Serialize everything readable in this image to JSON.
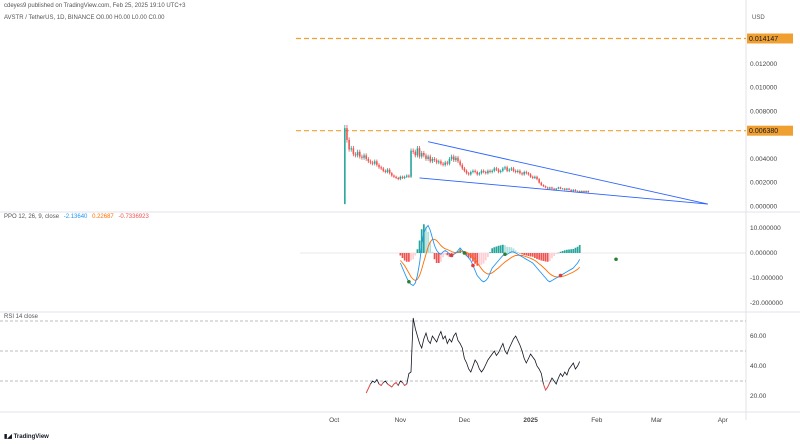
{
  "header": {
    "publish_line": "cdeyes9 published on TradingView.com, Feb 25, 2025 19:10 UTC+3",
    "symbol_line": "AVSTR / TetherUS, 1D, BINANCE O0.00 H0.00 L0.00 C0.00",
    "currency": "USD"
  },
  "footer": {
    "brand": "TradingView"
  },
  "colors": {
    "up": "#26a69a",
    "down": "#ef5350",
    "level": "#f0a030",
    "trend": "#2962ff",
    "ppo_line": "#2196f3",
    "ppo_signal": "#ff6d00",
    "rsi": "#131722",
    "dot_green": "#2e7d32",
    "dot_red": "#e53935"
  },
  "chart_data": [
    {
      "type": "candlestick",
      "pane": "price",
      "y_ticks": [
        "0.012000",
        "0.010000",
        "0.008000",
        "0.004000",
        "0.002000",
        "0.000000"
      ],
      "y_tick_values": [
        0.012,
        0.01,
        0.008,
        0.004,
        0.002,
        0.0
      ],
      "ylim": [
        -0.0003,
        0.0152
      ],
      "price_labels": [
        {
          "value": 0.014147,
          "label": "0.014147"
        },
        {
          "value": 0.00638,
          "label": "0.006380"
        }
      ],
      "trendlines": [
        {
          "from": [
            "2024-11-14",
            0.00545
          ],
          "to": [
            "2025-03-25",
            0.0002
          ]
        },
        {
          "from": [
            "2024-11-10",
            0.0024
          ],
          "to": [
            "2025-03-25",
            0.0002
          ]
        }
      ],
      "ohlc": {
        "start": "2024-10-06",
        "close": [
          0.0066,
          0.0056,
          0.0048,
          0.0049,
          0.0044,
          0.0043,
          0.0046,
          0.0042,
          0.0041,
          0.0043,
          0.004,
          0.0038,
          0.0037,
          0.0036,
          0.0038,
          0.0035,
          0.0033,
          0.0032,
          0.003,
          0.0029,
          0.0031,
          0.0028,
          0.0026,
          0.0025,
          0.0024,
          0.0023,
          0.0025,
          0.0024,
          0.0025,
          0.0026,
          0.0025,
          0.0047,
          0.0046,
          0.0043,
          0.0049,
          0.0042,
          0.0045,
          0.0043,
          0.004,
          0.0042,
          0.0038,
          0.004,
          0.0039,
          0.0037,
          0.0038,
          0.0036,
          0.0035,
          0.0037,
          0.0036,
          0.004,
          0.0042,
          0.0039,
          0.0041,
          0.0038,
          0.0035,
          0.0032,
          0.003,
          0.0028,
          0.0027,
          0.0029,
          0.003,
          0.0029,
          0.0027,
          0.0028,
          0.003,
          0.0029,
          0.0028,
          0.003,
          0.0029,
          0.003,
          0.0032,
          0.0031,
          0.0029,
          0.003,
          0.0032,
          0.0033,
          0.003,
          0.0031,
          0.0032,
          0.003,
          0.0029,
          0.003,
          0.0028,
          0.0027,
          0.0029,
          0.0028,
          0.0027,
          0.0025,
          0.0024,
          0.0025,
          0.0023,
          0.002,
          0.0018,
          0.0017,
          0.0016,
          0.0015,
          0.0016,
          0.0015,
          0.0014,
          0.0015,
          0.0016,
          0.0015,
          0.0015,
          0.0014,
          0.0015,
          0.0014,
          0.0013,
          0.0014,
          0.0013,
          0.0013,
          0.0012,
          0.0013,
          0.0012,
          0.0013,
          0.0012
        ]
      }
    },
    {
      "type": "ppo",
      "pane": "oscillator",
      "title": "PPO 12, 26, 9, close",
      "values": [
        "-2.13640",
        "0.22687",
        "-0.7336923"
      ],
      "y_ticks": [
        "10.000000",
        "0.000000",
        "-10.000000",
        "-20.000000"
      ],
      "y_tick_values": [
        10,
        0,
        -10,
        -20
      ],
      "ylim": [
        -22,
        14
      ],
      "start": "2024-11-01",
      "ppo": [
        -4.0,
        -6.0,
        -8.0,
        -10.0,
        -11.5,
        -12.5,
        -13.0,
        -12.0,
        -9.0,
        -4.0,
        3.0,
        8.0,
        10.0,
        11.0,
        9.0,
        6.0,
        3.0,
        1.0,
        0.0,
        -0.5,
        0.5,
        1.0,
        0.5,
        -0.5,
        -1.0,
        -0.5,
        0.0,
        1.0,
        2.0,
        1.0,
        0.0,
        -1.0,
        -2.0,
        -3.0,
        -5.0,
        -7.0,
        -9.0,
        -10.0,
        -11.0,
        -11.5,
        -11.0,
        -10.0,
        -8.0,
        -6.0,
        -5.0,
        -4.0,
        -3.0,
        -2.0,
        -1.0,
        -0.5,
        -0.5,
        0.0,
        0.5,
        0.5,
        0.0,
        -0.5,
        -1.0,
        -1.5,
        -2.0,
        -2.5,
        -3.0,
        -3.5,
        -4.0,
        -5.0,
        -6.0,
        -7.0,
        -8.0,
        -9.0,
        -10.0,
        -11.0,
        -11.5,
        -11.0,
        -10.5,
        -10.0,
        -9.5,
        -9.0,
        -8.5,
        -8.0,
        -7.5,
        -7.0,
        -6.5,
        -6.0,
        -5.0,
        -4.0,
        -2.5
      ],
      "signal": [
        -3.0,
        -4.0,
        -5.0,
        -6.5,
        -8.0,
        -9.5,
        -10.5,
        -11.0,
        -10.5,
        -9.0,
        -6.5,
        -3.5,
        -0.5,
        2.5,
        4.5,
        5.5,
        5.5,
        5.0,
        4.0,
        3.0,
        2.2,
        1.7,
        1.4,
        1.0,
        0.6,
        0.3,
        0.2,
        0.3,
        0.6,
        0.7,
        0.6,
        0.3,
        -0.2,
        -0.8,
        -1.6,
        -2.7,
        -3.9,
        -5.1,
        -6.3,
        -7.3,
        -8.0,
        -8.4,
        -8.3,
        -7.9,
        -7.3,
        -6.6,
        -5.9,
        -5.1,
        -4.3,
        -3.6,
        -3.0,
        -2.4,
        -1.8,
        -1.3,
        -1.0,
        -0.9,
        -0.9,
        -1.0,
        -1.2,
        -1.5,
        -1.8,
        -2.1,
        -2.5,
        -3.0,
        -3.6,
        -4.3,
        -5.0,
        -5.8,
        -6.6,
        -7.5,
        -8.3,
        -8.9,
        -9.3,
        -9.5,
        -9.6,
        -9.5,
        -9.3,
        -9.1,
        -8.8,
        -8.4,
        -8.0,
        -7.6,
        -7.1,
        -6.5,
        -5.7
      ],
      "histogram": [
        -1.0,
        -2.0,
        -3.0,
        -3.5,
        -3.5,
        -3.0,
        -2.5,
        -1.0,
        1.5,
        5.0,
        9.5,
        11.5,
        10.5,
        8.5,
        4.5,
        0.5,
        -2.5,
        -4.0,
        -4.0,
        -3.5,
        -1.7,
        -0.7,
        -0.9,
        -1.5,
        -1.6,
        -0.8,
        -0.2,
        0.7,
        1.4,
        0.3,
        -0.6,
        -1.3,
        -1.8,
        -2.2,
        -3.4,
        -4.3,
        -5.1,
        -4.9,
        -4.7,
        -4.2,
        -3.0,
        -1.6,
        0.3,
        1.9,
        2.3,
        2.6,
        2.9,
        3.1,
        3.3,
        3.1,
        2.5,
        2.4,
        2.3,
        1.8,
        1.0,
        0.4,
        -0.1,
        -0.5,
        -0.8,
        -1.0,
        -1.2,
        -1.4,
        -1.5,
        -2.0,
        -2.4,
        -2.7,
        -3.0,
        -3.2,
        -3.4,
        -3.5,
        -3.2,
        -2.1,
        -1.2,
        -0.5,
        0.1,
        0.5,
        0.8,
        1.1,
        1.3,
        1.4,
        1.5,
        1.6,
        2.1,
        2.5,
        3.2
      ],
      "markers": [
        {
          "date": "2024-11-05",
          "kind": "green"
        },
        {
          "date": "2024-11-25",
          "kind": "red"
        },
        {
          "date": "2024-12-01",
          "kind": "green"
        },
        {
          "date": "2024-12-05",
          "kind": "red"
        },
        {
          "date": "2024-12-20",
          "kind": "green"
        },
        {
          "date": "2025-01-15",
          "kind": "red"
        },
        {
          "date": "2025-02-10",
          "kind": "green"
        }
      ]
    },
    {
      "type": "line",
      "pane": "rsi",
      "title": "RSI 14 close",
      "y_ticks": [
        "60.00",
        "40.00",
        "20.00"
      ],
      "y_tick_values": [
        60,
        40,
        20
      ],
      "levels": [
        70,
        50,
        30
      ],
      "ylim": [
        12,
        72
      ],
      "start": "2024-10-16",
      "values": [
        22,
        25,
        28,
        30,
        29,
        31,
        28,
        27,
        29,
        30,
        28,
        27,
        26,
        28,
        29,
        27,
        30,
        29,
        27,
        28,
        35,
        36,
        72,
        65,
        60,
        55,
        52,
        58,
        62,
        57,
        55,
        60,
        58,
        56,
        60,
        63,
        58,
        60,
        55,
        58,
        56,
        60,
        62,
        57,
        55,
        52,
        45,
        42,
        38,
        36,
        40,
        44,
        42,
        38,
        36,
        38,
        41,
        44,
        46,
        48,
        50,
        47,
        49,
        52,
        55,
        50,
        48,
        52,
        55,
        58,
        60,
        57,
        54,
        50,
        45,
        42,
        45,
        48,
        46,
        44,
        40,
        38,
        35,
        28,
        24,
        26,
        29,
        32,
        30,
        28,
        32,
        35,
        33,
        36,
        34,
        38,
        40,
        42,
        38,
        40,
        43
      ]
    }
  ],
  "time_axis": {
    "ticks": [
      {
        "date": "2024-10-01",
        "label": "Oct"
      },
      {
        "date": "2024-11-01",
        "label": "Nov"
      },
      {
        "date": "2024-12-01",
        "label": "Dec"
      },
      {
        "date": "2025-01-01",
        "label": "2025"
      },
      {
        "date": "2025-02-01",
        "label": "Feb"
      },
      {
        "date": "2025-03-01",
        "label": "Mar"
      },
      {
        "date": "2025-04-01",
        "label": "Apr"
      }
    ]
  }
}
